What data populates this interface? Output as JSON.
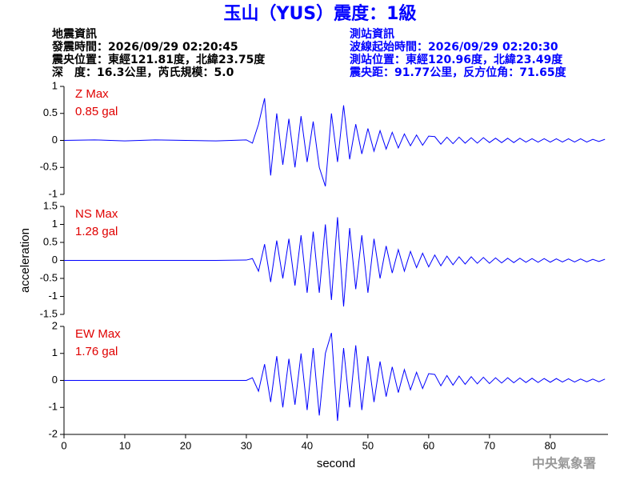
{
  "header": {
    "title": "玉山（YUS）震度：1級",
    "left": [
      "地震資訊",
      "發震時間：2026/09/29 02:20:45",
      "震央位置：東經121.81度，北緯23.75度",
      "深　度：16.3公里，芮氏規模：5.0"
    ],
    "right": [
      "測站資訊",
      "波線起始時間：2026/09/29 02:20:30",
      "測站位置：東經120.96度，北緯23.49度",
      "震央距：91.77公里，反方位角：71.65度"
    ]
  },
  "chart_data": [
    {
      "type": "line",
      "annotation": [
        "Z Max",
        "0.85 gal"
      ],
      "x": [
        0,
        5,
        10,
        15,
        20,
        25,
        30,
        31,
        32,
        33,
        34,
        35,
        36,
        37,
        38,
        39,
        40,
        41,
        42,
        43,
        44,
        45,
        46,
        47,
        48,
        49,
        50,
        51,
        52,
        53,
        54,
        55,
        56,
        57,
        58,
        59,
        60,
        61,
        62,
        63,
        64,
        65,
        66,
        67,
        68,
        69,
        70,
        71,
        72,
        73,
        74,
        75,
        76,
        77,
        78,
        79,
        80,
        81,
        82,
        83,
        84,
        85,
        86,
        87,
        88,
        89
      ],
      "xlim": [
        0,
        89.5
      ],
      "ylim": [
        -1,
        1
      ],
      "yticks": [
        -1,
        -0.5,
        0,
        0.5,
        1
      ],
      "series": [
        {
          "color": "#0000ff",
          "values": [
            0,
            0.01,
            -0.01,
            0.01,
            0,
            -0.01,
            0.01,
            -0.05,
            0.3,
            0.78,
            -0.65,
            0.5,
            -0.45,
            0.4,
            -0.5,
            0.45,
            -0.4,
            0.35,
            -0.5,
            -0.85,
            0.5,
            -0.4,
            0.65,
            -0.35,
            0.3,
            -0.25,
            0.22,
            -0.2,
            0.18,
            -0.16,
            0.15,
            -0.14,
            0.12,
            -0.1,
            0.1,
            -0.09,
            0.08,
            0.07,
            -0.07,
            0.06,
            -0.06,
            0.06,
            -0.05,
            0.05,
            -0.05,
            0.05,
            -0.04,
            0.04,
            -0.04,
            0.04,
            -0.04,
            0.04,
            -0.03,
            0.03,
            -0.03,
            0.03,
            -0.03,
            0.03,
            -0.03,
            0.03,
            -0.03,
            0.03,
            -0.03,
            0.02,
            -0.02,
            0.02
          ]
        }
      ]
    },
    {
      "type": "line",
      "annotation": [
        "NS Max",
        "1.28 gal"
      ],
      "ylabel": "acceleration",
      "x": [
        0,
        5,
        10,
        15,
        20,
        25,
        30,
        31,
        32,
        33,
        34,
        35,
        36,
        37,
        38,
        39,
        40,
        41,
        42,
        43,
        44,
        45,
        46,
        47,
        48,
        49,
        50,
        51,
        52,
        53,
        54,
        55,
        56,
        57,
        58,
        59,
        60,
        61,
        62,
        63,
        64,
        65,
        66,
        67,
        68,
        69,
        70,
        71,
        72,
        73,
        74,
        75,
        76,
        77,
        78,
        79,
        80,
        81,
        82,
        83,
        84,
        85,
        86,
        87,
        88,
        89
      ],
      "xlim": [
        0,
        89.5
      ],
      "ylim": [
        -1.5,
        1.5
      ],
      "yticks": [
        -1.5,
        -1,
        -0.5,
        0,
        0.5,
        1,
        1.5
      ],
      "series": [
        {
          "color": "#0000ff",
          "values": [
            0,
            0,
            0,
            0,
            0,
            0,
            0.01,
            0.05,
            -0.3,
            0.45,
            -0.6,
            0.55,
            -0.5,
            0.6,
            -0.7,
            0.7,
            -0.9,
            0.8,
            -0.9,
            1.0,
            -1.1,
            1.2,
            -1.28,
            0.9,
            -0.8,
            0.7,
            -0.9,
            0.6,
            -0.5,
            0.4,
            -0.35,
            0.3,
            -0.3,
            0.25,
            -0.2,
            0.2,
            -0.18,
            0.15,
            -0.15,
            0.12,
            -0.12,
            0.1,
            -0.1,
            0.1,
            -0.08,
            0.08,
            -0.08,
            0.07,
            -0.07,
            0.06,
            -0.06,
            0.06,
            -0.05,
            0.05,
            -0.05,
            0.05,
            -0.05,
            0.04,
            -0.04,
            0.04,
            -0.04,
            0.04,
            -0.04,
            0.03,
            -0.03,
            0.03
          ]
        }
      ]
    },
    {
      "type": "line",
      "annotation": [
        "EW Max",
        "1.76 gal"
      ],
      "xlabel": "second",
      "x": [
        0,
        5,
        10,
        15,
        20,
        25,
        30,
        31,
        32,
        33,
        34,
        35,
        36,
        37,
        38,
        39,
        40,
        41,
        42,
        43,
        44,
        45,
        46,
        47,
        48,
        49,
        50,
        51,
        52,
        53,
        54,
        55,
        56,
        57,
        58,
        59,
        60,
        61,
        62,
        63,
        64,
        65,
        66,
        67,
        68,
        69,
        70,
        71,
        72,
        73,
        74,
        75,
        76,
        77,
        78,
        79,
        80,
        81,
        82,
        83,
        84,
        85,
        86,
        87,
        88,
        89
      ],
      "xlim": [
        0,
        89.5
      ],
      "xticks": [
        0,
        10,
        20,
        30,
        40,
        50,
        60,
        70,
        80
      ],
      "ylim": [
        -2,
        2
      ],
      "yticks": [
        -2,
        -1,
        0,
        1,
        2
      ],
      "series": [
        {
          "color": "#0000ff",
          "values": [
            0,
            0,
            0,
            0,
            0,
            0,
            0,
            0.1,
            -0.4,
            0.6,
            -0.8,
            0.9,
            -1.0,
            0.8,
            -0.9,
            1.0,
            -1.1,
            1.2,
            -1.3,
            1.0,
            1.76,
            -1.5,
            1.2,
            -1.0,
            1.3,
            -1.1,
            0.9,
            -0.8,
            0.7,
            -0.6,
            0.5,
            -0.45,
            0.4,
            -0.35,
            0.3,
            -0.3,
            0.25,
            0.22,
            -0.2,
            0.18,
            -0.18,
            0.16,
            -0.15,
            0.14,
            -0.13,
            0.12,
            -0.12,
            0.1,
            -0.1,
            0.1,
            -0.09,
            0.09,
            -0.08,
            0.08,
            -0.08,
            0.07,
            -0.07,
            0.07,
            -0.06,
            0.06,
            -0.06,
            0.05,
            -0.05,
            0.05,
            -0.05,
            0.05
          ]
        }
      ]
    }
  ],
  "footer": "中央氣象署"
}
